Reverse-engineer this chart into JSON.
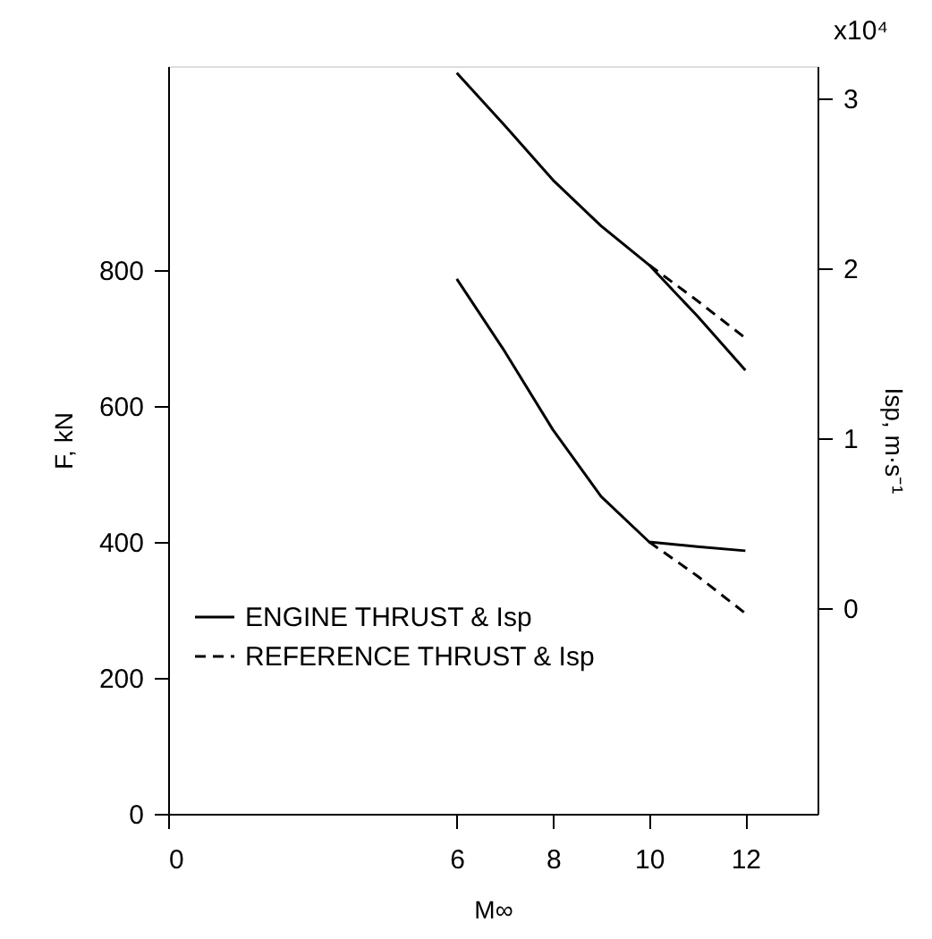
{
  "chart_data": {
    "type": "line",
    "xlabel": "M∞",
    "ylabel": "F, kN",
    "y2label": "Isp, m·s⁻¹",
    "annotations": [
      "x10⁴"
    ],
    "xlim": [
      0,
      13.5
    ],
    "xticks": [
      0,
      6,
      8,
      10,
      12
    ],
    "ylim": [
      0,
      1100
    ],
    "yticks": [
      0,
      200,
      400,
      600,
      800
    ],
    "y2lim": [
      -1.21,
      3.19
    ],
    "y2ticks": [
      0,
      1,
      2,
      3
    ],
    "grid": false,
    "legend": "bottom left",
    "series": [
      {
        "name": "ENGINE THRUST & Isp",
        "color": "#000000",
        "line_style": "solid",
        "axis": "y",
        "x": [
          6,
          7,
          8,
          9,
          10,
          11,
          12
        ],
        "values": [
          787,
          680,
          565,
          467,
          400,
          393,
          387
        ]
      },
      {
        "color": "#000000",
        "line_style": "solid",
        "axis": "y2",
        "x": [
          6,
          7,
          8,
          9,
          10,
          11,
          12
        ],
        "values": [
          3.15,
          2.84,
          2.52,
          2.25,
          2.02,
          1.72,
          1.4
        ]
      },
      {
        "name": "REFERENCE THRUST & Isp",
        "color": "#000000",
        "line_style": "dashed",
        "axis": "y",
        "x": [
          10,
          11,
          12
        ],
        "values": [
          400,
          350,
          295
        ]
      },
      {
        "color": "#000000",
        "line_style": "dashed",
        "axis": "y2",
        "x": [
          10,
          11,
          12
        ],
        "values": [
          2.02,
          1.81,
          1.59
        ]
      }
    ]
  }
}
